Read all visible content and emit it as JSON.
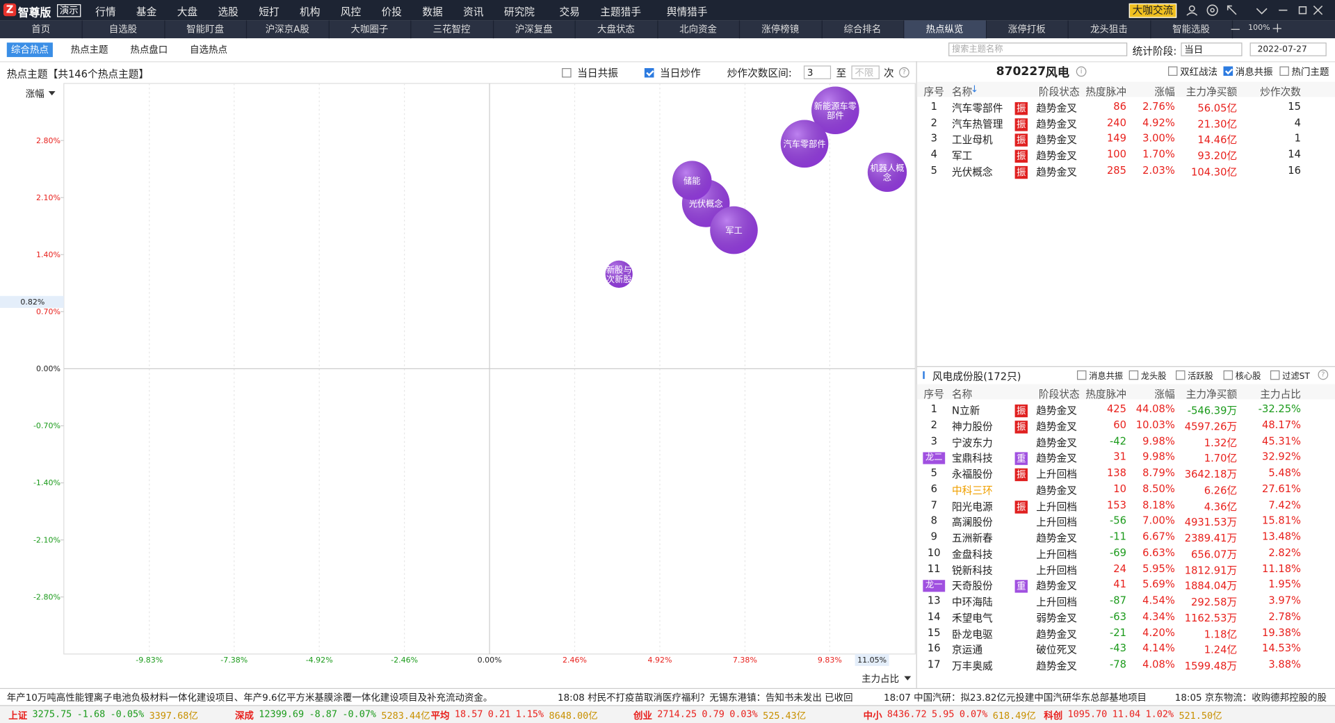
{
  "app": {
    "logo": "智尊版",
    "badge": "演示",
    "menu": [
      "行情",
      "基金",
      "大盘",
      "选股",
      "短打",
      "机构",
      "风控",
      "价投",
      "数据",
      "资讯",
      "研究院",
      "交易",
      "主题猎手",
      "舆情猎手"
    ],
    "chat": "大咖交流"
  },
  "tabs": {
    "items": [
      "首页",
      "自选股",
      "智能盯盘",
      "沪深京A股",
      "大咖圈子",
      "三花智控",
      "沪深复盘",
      "大盘状态",
      "北向资金",
      "涨停榜镜",
      "综合排名",
      "热点纵览",
      "涨停打板",
      "龙头狙击",
      "智能选股"
    ],
    "active": 11,
    "zoom": "100%"
  },
  "subtabs": {
    "items": [
      "综合热点",
      "热点主题",
      "热点盘口",
      "自选热点"
    ],
    "active": 0,
    "search_placeholder": "搜索主题名称",
    "period_label": "统计阶段:",
    "period": "当日",
    "date": "2022-07-27"
  },
  "hot_panel": {
    "title": "热点主题【共146个热点主题】",
    "filters": [
      {
        "label": "当日共振",
        "checked": false
      },
      {
        "label": "当日炒作",
        "checked": true
      }
    ],
    "range_label": "炒作次数区间:",
    "range_from": "3",
    "range_sep": "至",
    "range_to_placeholder": "不限",
    "range_unit": "次"
  },
  "chart_data": {
    "type": "scatter",
    "y_label": "涨幅",
    "x_label": "主力占比",
    "color": "#9a3ee8",
    "xlim": [
      -12.3,
      12.3
    ],
    "ylim": [
      -3.5,
      3.5
    ],
    "xticks": [
      {
        "value": -9.83,
        "label": "-9.83%"
      },
      {
        "value": -7.38,
        "label": "-7.38%"
      },
      {
        "value": -4.92,
        "label": "-4.92%"
      },
      {
        "value": -2.46,
        "label": "-2.46%"
      },
      {
        "value": 0,
        "label": "0.00%"
      },
      {
        "value": 2.46,
        "label": "2.46%"
      },
      {
        "value": 4.92,
        "label": "4.92%"
      },
      {
        "value": 7.38,
        "label": "7.38%"
      },
      {
        "value": 9.83,
        "label": "9.83%"
      }
    ],
    "yticks": [
      {
        "value": 2.8,
        "label": "2.80%"
      },
      {
        "value": 2.1,
        "label": "2.10%"
      },
      {
        "value": 1.4,
        "label": "1.40%"
      },
      {
        "value": 0.7,
        "label": "0.70%"
      },
      {
        "value": 0,
        "label": "0.00%"
      },
      {
        "value": -0.7,
        "label": "-0.70%"
      },
      {
        "value": -1.4,
        "label": "-1.40%"
      },
      {
        "value": -2.1,
        "label": "-2.10%"
      },
      {
        "value": -2.8,
        "label": "-2.80%"
      }
    ],
    "x_marker": {
      "value": 11.05,
      "label": "11.05%"
    },
    "y_marker": {
      "value": 0.82,
      "label": "0.82%"
    },
    "points": [
      {
        "name": "新能源车零部件",
        "x": 9.99,
        "y": 3.17,
        "size": 28
      },
      {
        "name": "汽车零部件",
        "x": 9.1,
        "y": 2.76,
        "size": 28
      },
      {
        "name": "机器人概念",
        "x": 11.49,
        "y": 2.41,
        "size": 23
      },
      {
        "name": "光伏概念",
        "x": 6.25,
        "y": 2.03,
        "size": 28
      },
      {
        "name": "储能",
        "x": 5.85,
        "y": 2.31,
        "size": 23
      },
      {
        "name": "军工",
        "x": 7.06,
        "y": 1.7,
        "size": 28
      },
      {
        "name": "新股与次新股",
        "x": 3.74,
        "y": 1.16,
        "size": 16
      }
    ]
  },
  "stock_header": {
    "code": "870227",
    "name": "风电",
    "filters": [
      {
        "label": "双红战法",
        "checked": false
      },
      {
        "label": "消息共振",
        "checked": true
      },
      {
        "label": "热门主题",
        "checked": false
      }
    ]
  },
  "theme_table": {
    "columns": [
      "序号",
      "名称",
      "阶段状态",
      "热度脉冲",
      "涨幅",
      "主力净买额",
      "炒作次数"
    ],
    "sort_mark": "↓",
    "rows": [
      {
        "no": "1",
        "name": "汽车零部件",
        "tag": "振",
        "state": "趋势金叉",
        "heat": "86",
        "chg": "2.76%",
        "net": "56.05亿",
        "last": "15"
      },
      {
        "no": "2",
        "name": "汽车热管理",
        "tag": "振",
        "state": "趋势金叉",
        "heat": "240",
        "chg": "4.92%",
        "net": "21.30亿",
        "last": "4"
      },
      {
        "no": "3",
        "name": "工业母机",
        "tag": "振",
        "state": "趋势金叉",
        "heat": "149",
        "chg": "3.00%",
        "net": "14.46亿",
        "last": "1"
      },
      {
        "no": "4",
        "name": "军工",
        "tag": "振",
        "state": "趋势金叉",
        "heat": "100",
        "chg": "1.70%",
        "net": "93.20亿",
        "last": "14"
      },
      {
        "no": "5",
        "name": "光伏概念",
        "tag": "振",
        "state": "趋势金叉",
        "heat": "285",
        "chg": "2.03%",
        "net": "104.30亿",
        "last": "16"
      }
    ]
  },
  "member_table": {
    "title": "风电成份股(172只)",
    "filters": [
      {
        "label": "消息共振",
        "checked": false
      },
      {
        "label": "龙头股",
        "checked": false
      },
      {
        "label": "活跃股",
        "checked": false
      },
      {
        "label": "核心股",
        "checked": false
      },
      {
        "label": "过滤ST",
        "checked": false
      }
    ],
    "columns": [
      "序号",
      "名称",
      "阶段状态",
      "热度脉冲",
      "涨幅",
      "主力净买额",
      "主力占比"
    ],
    "rows": [
      {
        "no": "1",
        "name": "N立新",
        "tag": "振",
        "state": "趋势金叉",
        "heat": "425",
        "chg": "44.08%",
        "net": "-546.39万",
        "last": "-32.25%"
      },
      {
        "no": "2",
        "name": "神力股份",
        "tag": "振",
        "state": "趋势金叉",
        "heat": "60",
        "chg": "10.03%",
        "net": "4597.26万",
        "last": "48.17%"
      },
      {
        "no": "3",
        "name": "宁波东力",
        "state": "趋势金叉",
        "heat": "-42",
        "chg": "9.98%",
        "net": "1.32亿",
        "last": "45.31%"
      },
      {
        "rank": "龙二",
        "name": "宝鼎科技",
        "tag": "重",
        "state": "趋势金叉",
        "heat": "31",
        "chg": "9.98%",
        "net": "1.70亿",
        "last": "32.92%"
      },
      {
        "no": "5",
        "name": "永福股份",
        "tag": "振",
        "state": "上升回档",
        "heat": "138",
        "chg": "8.79%",
        "net": "3642.18万",
        "last": "5.48%"
      },
      {
        "no": "6",
        "name": "中科三环",
        "highlight": true,
        "state": "趋势金叉",
        "heat": "10",
        "chg": "8.50%",
        "net": "6.26亿",
        "last": "27.61%"
      },
      {
        "no": "7",
        "name": "阳光电源",
        "tag": "振",
        "state": "上升回档",
        "heat": "153",
        "chg": "8.18%",
        "net": "4.36亿",
        "last": "7.42%"
      },
      {
        "no": "8",
        "name": "高澜股份",
        "state": "上升回档",
        "heat": "-56",
        "chg": "7.00%",
        "net": "4931.53万",
        "last": "15.81%"
      },
      {
        "no": "9",
        "name": "五洲新春",
        "state": "趋势金叉",
        "heat": "-11",
        "chg": "6.67%",
        "net": "2389.41万",
        "last": "13.48%"
      },
      {
        "no": "10",
        "name": "金盘科技",
        "state": "上升回档",
        "heat": "-69",
        "chg": "6.63%",
        "net": "656.07万",
        "last": "2.82%"
      },
      {
        "no": "11",
        "name": "锐新科技",
        "state": "上升回档",
        "heat": "24",
        "chg": "5.95%",
        "net": "1812.91万",
        "last": "11.18%"
      },
      {
        "rank": "龙一",
        "name": "天奇股份",
        "tag": "重",
        "state": "趋势金叉",
        "heat": "41",
        "chg": "5.69%",
        "net": "1884.04万",
        "last": "1.95%"
      },
      {
        "no": "13",
        "name": "中环海陆",
        "state": "上升回档",
        "heat": "-87",
        "chg": "4.54%",
        "net": "292.58万",
        "last": "3.97%"
      },
      {
        "no": "14",
        "name": "禾望电气",
        "state": "弱势金叉",
        "heat": "-63",
        "chg": "4.34%",
        "net": "1162.53万",
        "last": "2.78%"
      },
      {
        "no": "15",
        "name": "卧龙电驱",
        "state": "趋势金叉",
        "heat": "-21",
        "chg": "4.20%",
        "net": "1.18亿",
        "last": "19.38%"
      },
      {
        "no": "16",
        "name": "京运通",
        "state": "破位死叉",
        "heat": "-43",
        "chg": "4.14%",
        "net": "1.24亿",
        "last": "14.53%"
      },
      {
        "no": "17",
        "name": "万丰奥威",
        "state": "趋势金叉",
        "heat": "-78",
        "chg": "4.08%",
        "net": "1599.48万",
        "last": "3.88%"
      }
    ]
  },
  "news": [
    "年产10万吨高性能锂离子电池负极材料一体化建设项目、年产9.6亿平方米基膜涂覆一体化建设项目及补充流动资金。",
    "18:08 村民不打疫苗取消医疗福利？无锡东港镇：告知书未发出 已收回",
    "18:07 中国汽研：拟23.82亿元投建中国汽研华东总部基地项目",
    "18:05 京东物流：收购德邦控股的股"
  ],
  "indices": [
    {
      "name": "上证",
      "price": "3275.75",
      "chg": "-1.68",
      "pct": "-0.05%",
      "amount": "3397.68亿"
    },
    {
      "name": "深成",
      "price": "12399.69",
      "chg": "-8.87",
      "pct": "-0.07%",
      "amount": "5283.44亿"
    },
    {
      "name": "平均",
      "price": "18.57",
      "chg": "0.21",
      "pct": "1.15%",
      "amount": "8648.00亿"
    },
    {
      "name": "创业",
      "price": "2714.25",
      "chg": "0.79",
      "pct": "0.03%",
      "amount": "525.43亿"
    },
    {
      "name": "中小",
      "price": "8436.72",
      "chg": "5.95",
      "pct": "0.07%",
      "amount": "618.49亿"
    },
    {
      "name": "科创",
      "price": "1095.70",
      "chg": "11.04",
      "pct": "1.02%",
      "amount": "521.50亿"
    }
  ]
}
